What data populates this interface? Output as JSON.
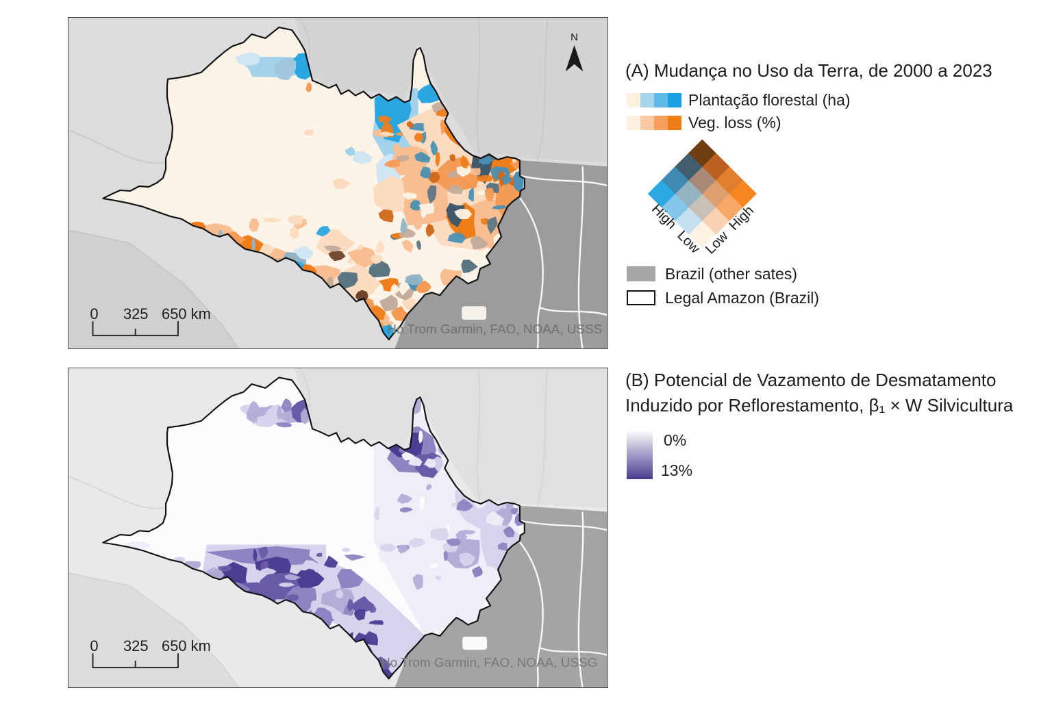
{
  "panel_a": {
    "title": "(A) Mudança no Uso da Terra, de 2000 a 2023",
    "ramp_blue": {
      "label": "Plantação florestal (ha)",
      "colors": [
        "#fdf2e2",
        "#a8d4ec",
        "#5fb9e7",
        "#1ba0e2"
      ]
    },
    "ramp_orange": {
      "label": "Veg. loss (%)",
      "colors": [
        "#fdf0e0",
        "#fbc9a2",
        "#f99e5c",
        "#ee7d17"
      ]
    },
    "bivariate": {
      "rows": [
        [
          "#fdf2e3",
          "#fbd3b4",
          "#f9a767",
          "#f68621"
        ],
        [
          "#c5e1f1",
          "#c9c0b6",
          "#e09f70",
          "#e27f2e"
        ],
        [
          "#83c6ea",
          "#93b2c2",
          "#a98a79",
          "#b95f20"
        ],
        [
          "#2ca8e2",
          "#3e8ab2",
          "#415e6e",
          "#6e3d10"
        ]
      ],
      "labels": {
        "blue_high": "High",
        "blue_low": "Low",
        "orange_low": "Low",
        "orange_high": "High"
      }
    },
    "brazil_key": {
      "label": "Brazil (other sates)",
      "color": "#a6a6a8"
    },
    "legal_amazon_key": {
      "label": "Legal Amazon (Brazil)"
    },
    "map": {
      "north_label": "N",
      "scalebar": {
        "t0": "0",
        "t1": "325",
        "t2": "650 km"
      },
      "attribution": "Ho Trom Garmin, FAO, NOAA, USSS"
    }
  },
  "panel_b": {
    "title_line1": "(B) Potencial de Vazamento de Desmatamento",
    "title_line2": "Induzido por Reflorestamento, β₁ × W Silvicultura",
    "gradient": {
      "top_label": "0%",
      "bottom_label": "13%",
      "from": "#ffffff",
      "to": "#4a3a8f"
    },
    "map": {
      "scalebar": {
        "t0": "0",
        "t1": "325",
        "t2": "650 km"
      },
      "attribution": "Ho Trom Garmin, FAO, NOAA, USSG"
    }
  },
  "map_a_palette": {
    "cream": "#fdf3e6",
    "paleOrange": "#fbdcc0",
    "lightOrange": "#f9bd92",
    "midOrange": "#f69b55",
    "strongOrange": "#ee7d1a",
    "darkOrange": "#cf6719",
    "brown": "#6e432a",
    "paleBlue": "#cfe6f4",
    "lightBlue": "#a2d1ec",
    "blue": "#2aa7e1",
    "steelLight": "#9fc6dd",
    "steelBlue": "#4a90b4",
    "slate": "#5d7684",
    "darkSlate": "#41596b",
    "grayTan": "#c3ac9c",
    "grayBlue": "#93b4c6"
  },
  "map_b_palette": {
    "white": "#fcfcfe",
    "lav0": "#efedf8",
    "lav1": "#d8d3ec",
    "lav2": "#b5add8",
    "lav3": "#8f84c1",
    "lav4": "#6a5ba8",
    "lav5": "#4c3c92"
  },
  "base_a": {
    "bg": "#dcdcde",
    "light2": "#d4d4d6",
    "sw": "#d0d0d2",
    "dark": "#9c9c9e",
    "borderLight": "#c6c6c8",
    "stateLine": "#ffffff",
    "outline": "#111111",
    "text": "#6f6f71",
    "rect": "#f4f1ea"
  },
  "base_b": {
    "bg": "#e9e9eb",
    "light2": "#e0e0e2",
    "sw": "#dddddf",
    "dark": "#a4a4a6",
    "borderLight": "#d4d4d6",
    "stateLine": "#ffffff",
    "outline": "#111111",
    "text": "#77777a",
    "rect": "#fafafc"
  }
}
